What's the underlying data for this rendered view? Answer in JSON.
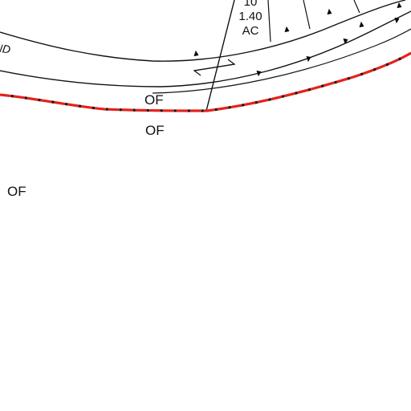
{
  "parcel": {
    "number": "10",
    "area": "1.40",
    "unit": "AC"
  },
  "road": {
    "name_fragment": "ND"
  },
  "labels": {
    "of_upper": "OF",
    "of_lower": "OF",
    "of_left": "OF"
  },
  "colors": {
    "boundary_red": "#e8211b",
    "linework": "#111111",
    "background": "#ffffff"
  }
}
